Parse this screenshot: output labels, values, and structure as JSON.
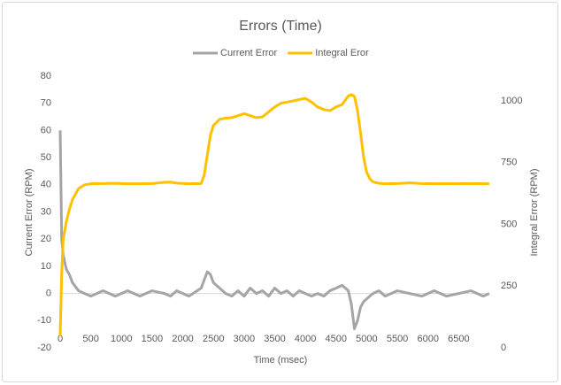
{
  "chart_data": {
    "type": "line",
    "title": "Errors (Time)",
    "x_label": "Time (msec)",
    "y_label": "Current Error (RPM)",
    "y2_label": "Integral Error (RPM)",
    "x": [
      0,
      25,
      50,
      100,
      150,
      200,
      300,
      400,
      500,
      700,
      900,
      1100,
      1300,
      1500,
      1700,
      1800,
      1900,
      2100,
      2300,
      2350,
      2400,
      2450,
      2500,
      2600,
      2700,
      2800,
      2900,
      3000,
      3100,
      3200,
      3300,
      3400,
      3500,
      3600,
      3700,
      3800,
      3900,
      4000,
      4100,
      4200,
      4300,
      4400,
      4500,
      4600,
      4700,
      4750,
      4800,
      4850,
      4900,
      4950,
      5000,
      5050,
      5100,
      5200,
      5300,
      5500,
      5700,
      5900,
      6100,
      6300,
      6500,
      6700,
      6900,
      7000
    ],
    "series": [
      {
        "name": "Current Error",
        "color": "#a5a5a5",
        "axis": "y",
        "values": [
          60,
          20,
          14,
          9,
          7,
          4,
          1,
          0,
          -1,
          1,
          -1,
          1,
          -1,
          1,
          0,
          -1,
          1,
          -1,
          2,
          5,
          8,
          7,
          4,
          2,
          0,
          -1,
          1,
          -1,
          2,
          0,
          1,
          -1,
          2,
          0,
          1,
          -1,
          1,
          0,
          -1,
          0,
          -1,
          1,
          2,
          3,
          1,
          -4,
          -13,
          -10,
          -5,
          -3,
          -2,
          -1,
          0,
          1,
          -1,
          1,
          0,
          -1,
          1,
          -1,
          0,
          1,
          -1,
          0
        ]
      },
      {
        "name": "Integral Eror",
        "color": "#ffc000",
        "axis": "y2",
        "values": [
          50,
          300,
          440,
          510,
          560,
          600,
          645,
          660,
          664,
          665,
          666,
          664,
          664,
          665,
          670,
          671,
          667,
          664,
          665,
          700,
          780,
          860,
          900,
          925,
          930,
          932,
          940,
          948,
          940,
          932,
          935,
          955,
          975,
          990,
          995,
          1000,
          1005,
          1010,
          995,
          975,
          965,
          960,
          975,
          985,
          1020,
          1025,
          1018,
          960,
          870,
          770,
          710,
          685,
          672,
          666,
          664,
          665,
          668,
          665,
          664,
          665,
          664,
          665,
          664,
          664
        ]
      }
    ],
    "xlim": [
      0,
      7000
    ],
    "xticks": [
      0,
      500,
      1000,
      1500,
      2000,
      2500,
      3000,
      3500,
      4000,
      4500,
      5000,
      5500,
      6000,
      6500
    ],
    "ylim": [
      -20,
      80
    ],
    "yticks": [
      -20,
      -10,
      0,
      10,
      20,
      30,
      40,
      50,
      60,
      70,
      80
    ],
    "y2lim": [
      0,
      1100
    ],
    "y2ticks": [
      0,
      250,
      500,
      750,
      1000
    ],
    "legend": "top",
    "grid": false
  }
}
